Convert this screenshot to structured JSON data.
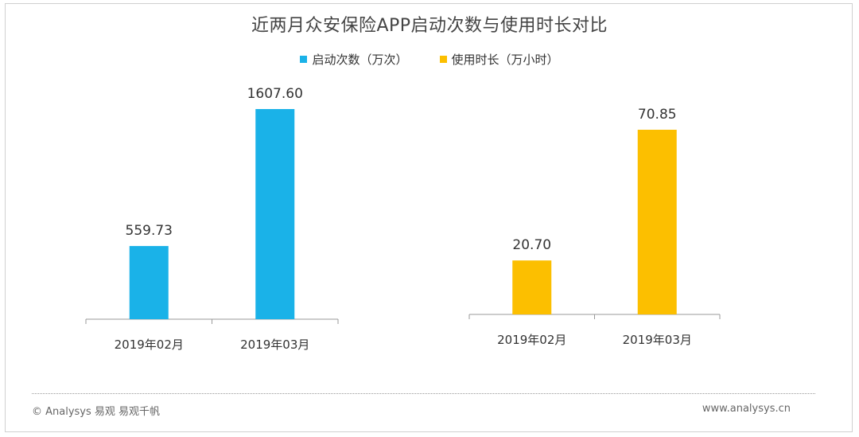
{
  "chart_data": {
    "type": "bar",
    "title": "近两月众安保险APP启动次数与使用时长对比",
    "legend": [
      {
        "name": "启动次数（万次）",
        "color": "#1ab2e8"
      },
      {
        "name": "使用时长（万小时）",
        "color": "#fcbf00"
      }
    ],
    "panels": [
      {
        "series": "启动次数（万次）",
        "color": "#1ab2e8",
        "categories": [
          "2019年02月",
          "2019年03月"
        ],
        "values": [
          559.73,
          1607.6
        ],
        "labels": [
          "559.73",
          "1607.60"
        ],
        "ylim": [
          0,
          1607.6
        ]
      },
      {
        "series": "使用时长（万小时）",
        "color": "#fcbf00",
        "categories": [
          "2019年02月",
          "2019年03月"
        ],
        "values": [
          20.7,
          70.85
        ],
        "labels": [
          "20.70",
          "70.85"
        ],
        "ylim": [
          0,
          70.85
        ]
      }
    ]
  },
  "footer": {
    "left": "© Analysys 易观 易观千帆",
    "right": "www.analysys.cn"
  }
}
